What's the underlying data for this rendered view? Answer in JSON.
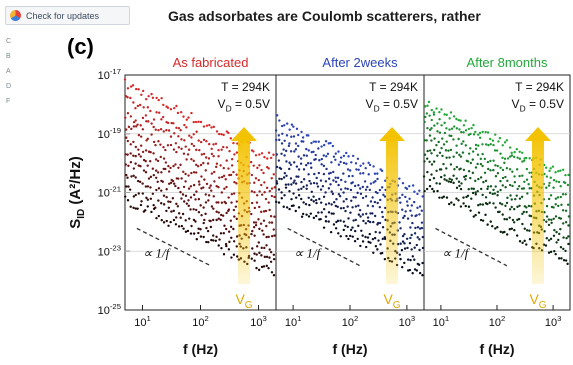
{
  "topbar": {
    "update_button_label": "Check for updates",
    "header_text": "Gas adsorbates are Coulomb scatterers, rather"
  },
  "sidebar": {
    "items": [
      "C",
      "B",
      "A",
      "D",
      "F"
    ]
  },
  "panel_label": "(c)",
  "colors": {
    "as_fabricated": "#d62a2a",
    "after_2weeks": "#2b44b8",
    "after_8months": "#23a83a",
    "arrow": "#f3c200"
  },
  "chart_data": {
    "type": "scatter",
    "ylabel": "S_ID (A²/Hz)",
    "x_scale": "log",
    "y_scale": "log",
    "xlim": [
      5,
      2000
    ],
    "ylim": [
      1e-25,
      1e-17
    ],
    "grid": false,
    "y_tick_labels": [
      "10^-17",
      "10^-19",
      "10^-21",
      "10^-23",
      "10^-25"
    ],
    "panels": [
      {
        "title": "As fabricated",
        "color": "#d62a2a",
        "temperature": "T = 294K",
        "drain_voltage": "V_D = 0.5V",
        "arrow_label": "V_G",
        "slope_label": "∝ 1/f",
        "xlabel": "f (Hz)",
        "x_tick_labels": [
          "10^1",
          "10^2",
          "10^3"
        ],
        "series_at_10Hz": [
          2.5e-18,
          7e-19,
          2.5e-19,
          1e-19,
          3e-20,
          1.2e-20,
          5e-21,
          2e-21,
          7e-22,
          3e-22
        ]
      },
      {
        "title": "After 2weeks",
        "color": "#2b44b8",
        "temperature": "T = 294K",
        "drain_voltage": "V_D = 0.5V",
        "arrow_label": "V_G",
        "slope_label": "∝ 1/f",
        "xlabel": "f (Hz)",
        "x_tick_labels": [
          "10^1",
          "10^2",
          "10^3"
        ],
        "series_at_10Hz": [
          1.5e-19,
          6e-20,
          2.5e-20,
          1e-20,
          4e-21,
          1.8e-21,
          8e-22,
          3e-22
        ]
      },
      {
        "title": "After 8months",
        "color": "#23a83a",
        "temperature": "T = 294K",
        "drain_voltage": "V_D = 0.5V",
        "arrow_label": "V_G",
        "slope_label": "∝ 1/f",
        "xlabel": "f (Hz)",
        "x_tick_labels": [
          "10^1",
          "10^2",
          "10^3"
        ],
        "series_at_10Hz": [
          6e-19,
          2.5e-19,
          1e-19,
          4e-20,
          1.5e-20,
          6e-21,
          2.5e-21,
          8e-22
        ]
      }
    ]
  }
}
